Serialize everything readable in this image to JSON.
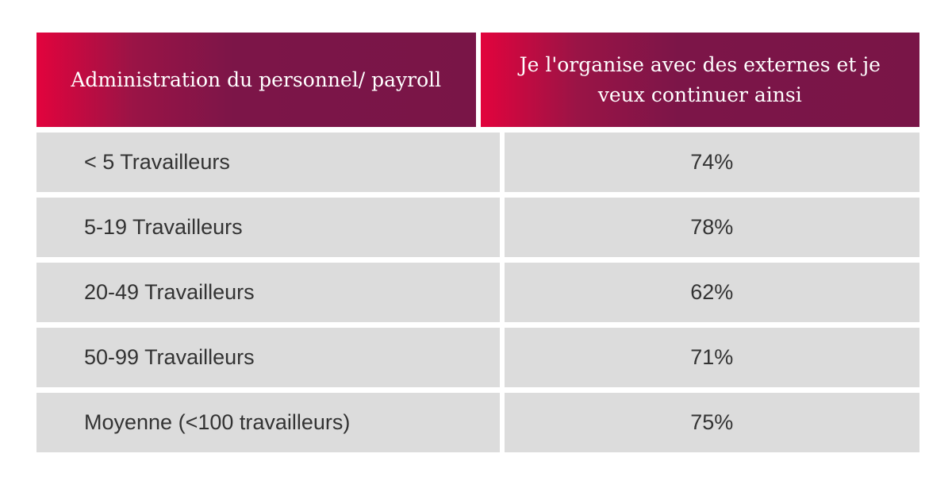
{
  "chart_data": {
    "type": "table",
    "columns": [
      "Administration du personnel/ payroll",
      "Je l'organise avec des externes et je veux continuer ainsi"
    ],
    "rows": [
      {
        "label": "< 5 Travailleurs",
        "value": "74%"
      },
      {
        "label": "5-19 Travailleurs",
        "value": "78%"
      },
      {
        "label": "20-49 Travailleurs",
        "value": "62%"
      },
      {
        "label": "50-99 Travailleurs",
        "value": "71%"
      },
      {
        "label": "Moyenne (<100 travailleurs)",
        "value": "75%"
      }
    ],
    "colors": {
      "header_start": "#e2033d",
      "header_end": "#791547",
      "row_bg": "#dcdcdc",
      "text": "#333333"
    }
  }
}
